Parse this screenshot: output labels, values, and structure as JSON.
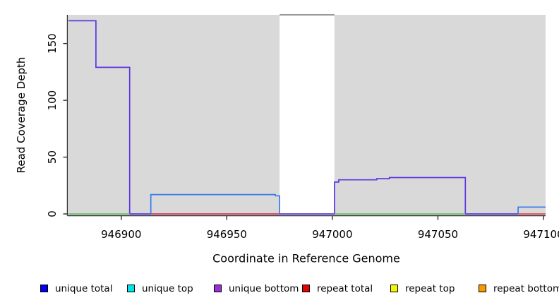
{
  "window": {
    "background": "#ffffff"
  },
  "chart_data": {
    "type": "line",
    "title": "",
    "xlabel": "Coordinate in Reference Genome",
    "ylabel": "Read Coverage Depth",
    "xlim": [
      946875,
      947101
    ],
    "ylim": [
      0,
      175
    ],
    "x_ticks": [
      946900,
      946950,
      947000,
      947050,
      947100
    ],
    "y_ticks": [
      0,
      50,
      100,
      150
    ],
    "grid": false,
    "legend_position": "bottom",
    "axis_color": "#2e2e2e",
    "text_color": "#000000",
    "shaded_regions": [
      {
        "name": "unique-region-left",
        "x0": 946875,
        "x1": 946975,
        "color": "#d9d9d9"
      },
      {
        "name": "unique-region-right",
        "x0": 947001,
        "x1": 947101,
        "color": "#d9d9d9"
      }
    ],
    "gap_region": {
      "name": "uncovered-gap",
      "x0": 946975,
      "x1": 947001,
      "color": "#ffffff",
      "top_border_color": "#999999"
    },
    "series": [
      {
        "name": "unique-bottom-coverage",
        "color": "#5c36e0",
        "points": [
          [
            946875,
            170
          ],
          [
            946888,
            170
          ],
          [
            946888,
            129
          ],
          [
            946904,
            129
          ],
          [
            946904,
            0
          ],
          [
            947001,
            0
          ],
          [
            947001,
            28
          ],
          [
            947003,
            28
          ],
          [
            947003,
            30
          ],
          [
            947021,
            30
          ],
          [
            947021,
            31
          ],
          [
            947027,
            31
          ],
          [
            947027,
            32
          ],
          [
            947063,
            32
          ],
          [
            947063,
            0
          ],
          [
            947088,
            0
          ]
        ]
      },
      {
        "name": "baseline-green-left",
        "color": "#6cbf6c",
        "points": [
          [
            946875,
            0
          ],
          [
            946904,
            0
          ]
        ]
      },
      {
        "name": "baseline-green-right",
        "color": "#6cbf6c",
        "points": [
          [
            947001,
            0
          ],
          [
            947063,
            0
          ]
        ]
      },
      {
        "name": "repeat-total-baseline-left",
        "color": "#e0485a",
        "points": [
          [
            946914,
            0
          ],
          [
            946975,
            0
          ]
        ]
      },
      {
        "name": "repeat-total-baseline-right",
        "color": "#e0485a",
        "points": [
          [
            947088,
            0
          ],
          [
            947101,
            0
          ]
        ]
      },
      {
        "name": "unique-total-coverage-left",
        "color": "#3a7bea",
        "points": [
          [
            946914,
            0
          ],
          [
            946914,
            17
          ],
          [
            946973,
            17
          ],
          [
            946973,
            16
          ],
          [
            946975,
            16
          ],
          [
            946975,
            0
          ]
        ]
      },
      {
        "name": "unique-total-coverage-right",
        "color": "#3a7bea",
        "points": [
          [
            947088,
            0
          ],
          [
            947088,
            6
          ],
          [
            947101,
            6
          ]
        ]
      }
    ]
  },
  "legend": {
    "items": [
      {
        "label": "unique total",
        "color": "#0000ee"
      },
      {
        "label": "unique top",
        "color": "#00e5e5"
      },
      {
        "label": "unique bottom",
        "color": "#9a2fd4"
      },
      {
        "label": "repeat total",
        "color": "#e60000"
      },
      {
        "label": "repeat top",
        "color": "#f5f500"
      },
      {
        "label": "repeat bottom",
        "color": "#f59b00"
      }
    ]
  }
}
